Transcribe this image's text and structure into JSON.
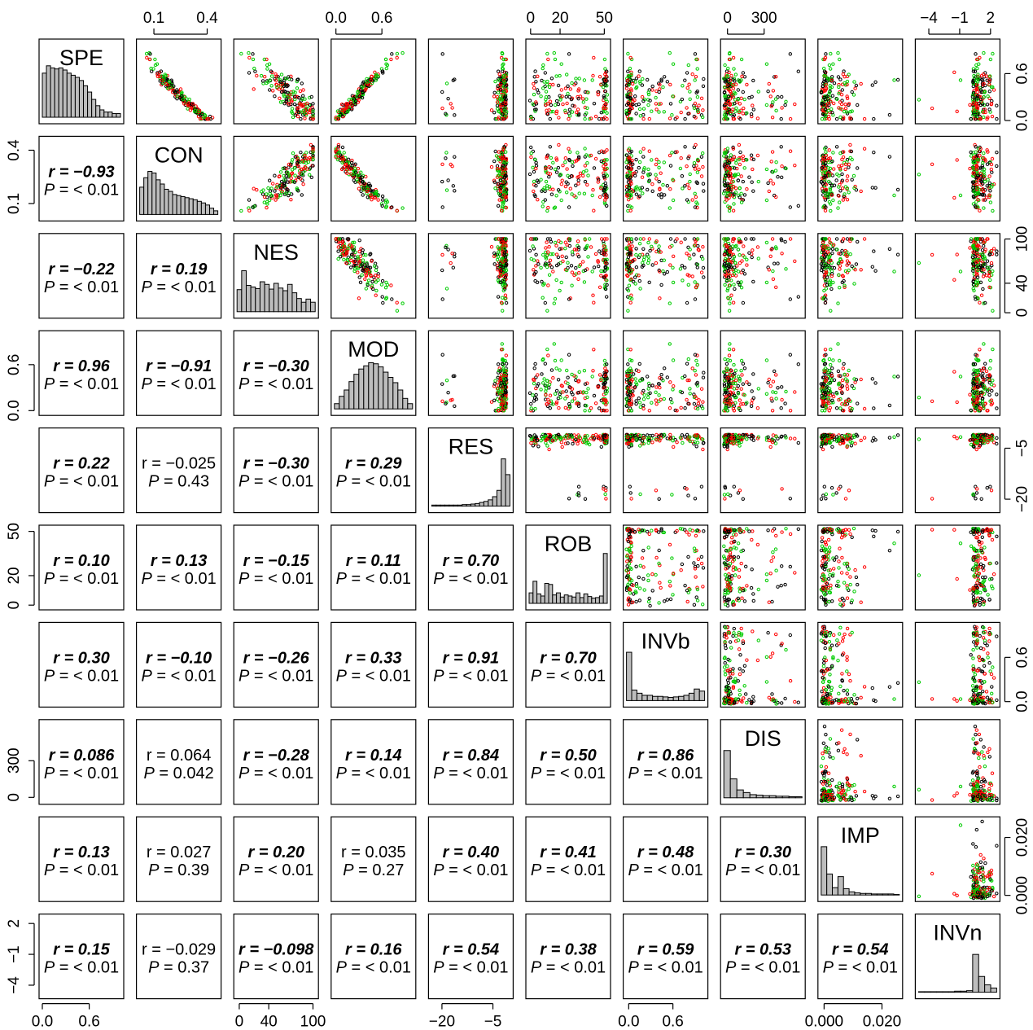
{
  "chart_data": {
    "type": "scatter",
    "variables": [
      "SPE",
      "CON",
      "NES",
      "MOD",
      "RES",
      "ROB",
      "INVb",
      "DIS",
      "IMP",
      "INVn"
    ],
    "series_colors": [
      "#000000",
      "#ff0000",
      "#00cc00"
    ],
    "axes": {
      "SPE": {
        "range": [
          0,
          1
        ],
        "ticks": [
          0.0,
          0.6
        ],
        "tick_labels": [
          "0.0",
          "0.6"
        ],
        "ticks_right": [
          0.0,
          0.6
        ],
        "tick_labels_right": [
          "0.0",
          "0.6"
        ]
      },
      "CON": {
        "range": [
          0.02,
          0.46
        ],
        "ticks": [
          0.1,
          0.4
        ],
        "tick_labels": [
          "0.1",
          "0.4"
        ]
      },
      "NES": {
        "range": [
          -3,
          103
        ],
        "ticks": [
          0,
          40,
          100
        ],
        "tick_labels": [
          "0",
          "40",
          "100"
        ]
      },
      "MOD": {
        "range": [
          -0.02,
          1.0
        ],
        "ticks": [
          0.0,
          0.6
        ],
        "tick_labels": [
          "0.0",
          "0.6"
        ]
      },
      "RES": {
        "range": [
          -23,
          0
        ],
        "ticks": [
          -20,
          -5
        ],
        "tick_labels": [
          "−20",
          "−5"
        ]
      },
      "ROB": {
        "range": [
          -1,
          52
        ],
        "ticks": [
          0,
          20,
          50
        ],
        "tick_labels": [
          "0",
          "20",
          "50"
        ]
      },
      "INVb": {
        "range": [
          -0.03,
          1.03
        ],
        "ticks": [
          0.0,
          0.6
        ],
        "tick_labels": [
          "0.0",
          "0.6"
        ]
      },
      "DIS": {
        "range": [
          -30,
          610
        ],
        "ticks": [
          0,
          300
        ],
        "tick_labels": [
          "0",
          "300"
        ]
      },
      "IMP": {
        "range": [
          -0.001,
          0.026
        ],
        "ticks": [
          0.0,
          0.02
        ],
        "tick_labels": [
          "0.000",
          "0.020"
        ]
      },
      "INVn": {
        "range": [
          -5,
          2.6
        ],
        "ticks": [
          -4,
          -1,
          2
        ],
        "tick_labels": [
          "−4",
          "−1",
          "2"
        ]
      }
    },
    "histograms": {
      "SPE": [
        0.84,
        0.98,
        0.94,
        0.92,
        0.94,
        0.9,
        0.84,
        0.8,
        0.76,
        0.7,
        0.6,
        0.48,
        0.34,
        0.22,
        0.14,
        0.1,
        0.1,
        0.07,
        0.07
      ],
      "CON": [
        0.52,
        0.7,
        0.82,
        0.79,
        0.66,
        0.58,
        0.48,
        0.44,
        0.38,
        0.36,
        0.34,
        0.32,
        0.3,
        0.28,
        0.25,
        0.22,
        0.18,
        0.12,
        0.07
      ],
      "NES": [
        0.42,
        0.78,
        0.5,
        0.47,
        0.44,
        0.57,
        0.52,
        0.43,
        0.54,
        0.45,
        0.4,
        0.52,
        0.36,
        0.25,
        0.18,
        0.24,
        0.18
      ],
      "MOD": [
        0.1,
        0.24,
        0.36,
        0.52,
        0.66,
        0.76,
        0.82,
        0.88,
        0.86,
        0.8,
        0.7,
        0.6,
        0.5,
        0.36,
        0.2,
        0.1
      ],
      "RES": [
        0.02,
        0.02,
        0.02,
        0.02,
        0.02,
        0.02,
        0.02,
        0.03,
        0.03,
        0.04,
        0.05,
        0.07,
        0.09,
        0.12,
        0.18,
        0.3,
        0.9,
        0.6
      ],
      "ROB": [
        0.2,
        0.42,
        0.18,
        0.14,
        0.38,
        0.36,
        0.16,
        0.2,
        0.12,
        0.16,
        0.14,
        0.12,
        0.2,
        0.11,
        0.18,
        0.13,
        0.1,
        0.11,
        0.14,
        0.95
      ],
      "INVb": [
        0.92,
        0.2,
        0.14,
        0.1,
        0.1,
        0.08,
        0.08,
        0.07,
        0.06,
        0.07,
        0.08,
        0.1,
        0.14,
        0.22,
        0.18
      ],
      "DIS": [
        0.9,
        0.36,
        0.15,
        0.1,
        0.06,
        0.05,
        0.04,
        0.04,
        0.03,
        0.03,
        0.02,
        0.02
      ],
      "IMP": [
        0.92,
        0.4,
        0.14,
        0.35,
        0.12,
        0.06,
        0.04,
        0.03,
        0.03,
        0.02,
        0.02,
        0.02,
        0.02,
        0.01
      ],
      "INVn": [
        0.01,
        0.01,
        0.01,
        0.01,
        0.01,
        0.01,
        0.02,
        0.02,
        0.03,
        0.72,
        0.3,
        0.14,
        0.08
      ]
    },
    "correlations": [
      {
        "row": "CON",
        "col": "SPE",
        "r": "r = −0.93",
        "p": "< 0.01",
        "bold": true
      },
      {
        "row": "NES",
        "col": "SPE",
        "r": "r = −0.22",
        "p": "< 0.01",
        "bold": true
      },
      {
        "row": "NES",
        "col": "CON",
        "r": "r = 0.19",
        "p": "< 0.01",
        "bold": true
      },
      {
        "row": "MOD",
        "col": "SPE",
        "r": "r = 0.96",
        "p": "< 0.01",
        "bold": true
      },
      {
        "row": "MOD",
        "col": "CON",
        "r": "r = −0.91",
        "p": "< 0.01",
        "bold": true
      },
      {
        "row": "MOD",
        "col": "NES",
        "r": "r = −0.30",
        "p": "< 0.01",
        "bold": true
      },
      {
        "row": "RES",
        "col": "SPE",
        "r": "r = 0.22",
        "p": "< 0.01",
        "bold": true
      },
      {
        "row": "RES",
        "col": "CON",
        "r": "r = −0.025",
        "p": "0.43",
        "bold": false
      },
      {
        "row": "RES",
        "col": "NES",
        "r": "r = −0.30",
        "p": "< 0.01",
        "bold": true
      },
      {
        "row": "RES",
        "col": "MOD",
        "r": "r = 0.29",
        "p": "< 0.01",
        "bold": true
      },
      {
        "row": "ROB",
        "col": "SPE",
        "r": "r = 0.10",
        "p": "< 0.01",
        "bold": true
      },
      {
        "row": "ROB",
        "col": "CON",
        "r": "r = 0.13",
        "p": "< 0.01",
        "bold": true
      },
      {
        "row": "ROB",
        "col": "NES",
        "r": "r = −0.15",
        "p": "< 0.01",
        "bold": true
      },
      {
        "row": "ROB",
        "col": "MOD",
        "r": "r = 0.11",
        "p": "< 0.01",
        "bold": true
      },
      {
        "row": "ROB",
        "col": "RES",
        "r": "r = 0.70",
        "p": "< 0.01",
        "bold": true
      },
      {
        "row": "INVb",
        "col": "SPE",
        "r": "r = 0.30",
        "p": "< 0.01",
        "bold": true
      },
      {
        "row": "INVb",
        "col": "CON",
        "r": "r = −0.10",
        "p": "< 0.01",
        "bold": true
      },
      {
        "row": "INVb",
        "col": "NES",
        "r": "r = −0.26",
        "p": "< 0.01",
        "bold": true
      },
      {
        "row": "INVb",
        "col": "MOD",
        "r": "r = 0.33",
        "p": "< 0.01",
        "bold": true
      },
      {
        "row": "INVb",
        "col": "RES",
        "r": "r = 0.91",
        "p": "< 0.01",
        "bold": true
      },
      {
        "row": "INVb",
        "col": "ROB",
        "r": "r = 0.70",
        "p": "< 0.01",
        "bold": true
      },
      {
        "row": "DIS",
        "col": "SPE",
        "r": "r = 0.086",
        "p": "< 0.01",
        "bold": true
      },
      {
        "row": "DIS",
        "col": "CON",
        "r": "r = 0.064",
        "p": "0.042",
        "bold": false
      },
      {
        "row": "DIS",
        "col": "NES",
        "r": "r = −0.28",
        "p": "< 0.01",
        "bold": true
      },
      {
        "row": "DIS",
        "col": "MOD",
        "r": "r = 0.14",
        "p": "< 0.01",
        "bold": true
      },
      {
        "row": "DIS",
        "col": "RES",
        "r": "r = 0.84",
        "p": "< 0.01",
        "bold": true
      },
      {
        "row": "DIS",
        "col": "ROB",
        "r": "r = 0.50",
        "p": "< 0.01",
        "bold": true
      },
      {
        "row": "DIS",
        "col": "INVb",
        "r": "r = 0.86",
        "p": "< 0.01",
        "bold": true
      },
      {
        "row": "IMP",
        "col": "SPE",
        "r": "r = 0.13",
        "p": "< 0.01",
        "bold": true
      },
      {
        "row": "IMP",
        "col": "CON",
        "r": "r = 0.027",
        "p": "0.39",
        "bold": false
      },
      {
        "row": "IMP",
        "col": "NES",
        "r": "r = 0.20",
        "p": "< 0.01",
        "bold": true
      },
      {
        "row": "IMP",
        "col": "MOD",
        "r": "r = 0.035",
        "p": "0.27",
        "bold": false
      },
      {
        "row": "IMP",
        "col": "RES",
        "r": "r = 0.40",
        "p": "< 0.01",
        "bold": true
      },
      {
        "row": "IMP",
        "col": "ROB",
        "r": "r = 0.41",
        "p": "< 0.01",
        "bold": true
      },
      {
        "row": "IMP",
        "col": "INVb",
        "r": "r = 0.48",
        "p": "< 0.01",
        "bold": true
      },
      {
        "row": "IMP",
        "col": "DIS",
        "r": "r = 0.30",
        "p": "< 0.01",
        "bold": true
      },
      {
        "row": "INVn",
        "col": "SPE",
        "r": "r = 0.15",
        "p": "< 0.01",
        "bold": true
      },
      {
        "row": "INVn",
        "col": "CON",
        "r": "r = −0.029",
        "p": "0.37",
        "bold": false
      },
      {
        "row": "INVn",
        "col": "NES",
        "r": "r = −0.098",
        "p": "< 0.01",
        "bold": true
      },
      {
        "row": "INVn",
        "col": "MOD",
        "r": "r = 0.16",
        "p": "< 0.01",
        "bold": true
      },
      {
        "row": "INVn",
        "col": "RES",
        "r": "r = 0.54",
        "p": "< 0.01",
        "bold": true
      },
      {
        "row": "INVn",
        "col": "ROB",
        "r": "r = 0.38",
        "p": "< 0.01",
        "bold": true
      },
      {
        "row": "INVn",
        "col": "INVb",
        "r": "r = 0.59",
        "p": "< 0.01",
        "bold": true
      },
      {
        "row": "INVn",
        "col": "DIS",
        "r": "r = 0.53",
        "p": "< 0.01",
        "bold": true
      },
      {
        "row": "INVn",
        "col": "IMP",
        "r": "r = 0.54",
        "p": "< 0.01",
        "bold": true
      }
    ],
    "p_prefix": "P =",
    "grid": false
  }
}
